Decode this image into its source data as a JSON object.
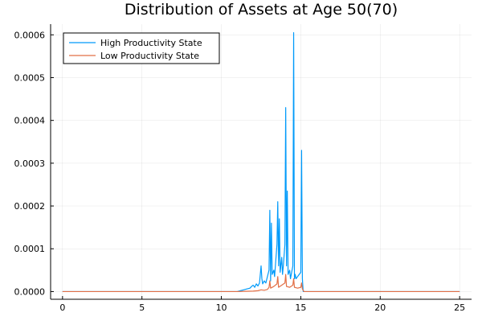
{
  "chart_data": {
    "type": "line",
    "title": "Distribution of Assets at Age 50(70)",
    "xlabel": "",
    "ylabel": "",
    "xlim": [
      -0.75,
      25.75
    ],
    "ylim": [
      -1.8e-05,
      0.000625
    ],
    "xticks": [
      0,
      5,
      10,
      15,
      20,
      25
    ],
    "xtick_labels": [
      "0",
      "5",
      "10",
      "15",
      "20",
      "25"
    ],
    "yticks": [
      0,
      0.0001,
      0.0002,
      0.0003,
      0.0004,
      0.0005,
      0.0006
    ],
    "ytick_labels": [
      "0.0000",
      "0.0001",
      "0.0002",
      "0.0003",
      "0.0004",
      "0.0005",
      "0.0006"
    ],
    "grid": true,
    "legend_position": "top-left",
    "series": [
      {
        "name": "High Productivity State",
        "color": "#009AFA",
        "x": [
          0,
          11,
          11.2,
          11.4,
          11.6,
          11.8,
          11.9,
          12.0,
          12.1,
          12.2,
          12.3,
          12.4,
          12.45,
          12.5,
          12.55,
          12.6,
          12.7,
          12.8,
          12.9,
          13.0,
          13.05,
          13.1,
          13.15,
          13.2,
          13.3,
          13.35,
          13.4,
          13.5,
          13.55,
          13.6,
          13.65,
          13.7,
          13.8,
          13.85,
          13.9,
          14.0,
          14.05,
          14.1,
          14.15,
          14.2,
          14.3,
          14.35,
          14.4,
          14.5,
          14.55,
          14.6,
          14.65,
          14.7,
          14.8,
          14.9,
          15.0,
          15.05,
          15.1,
          15.15,
          15.2,
          15.3,
          25
        ],
        "y": [
          0,
          0,
          2e-06,
          4e-06,
          6e-06,
          8e-06,
          1.2e-05,
          1.5e-05,
          1e-05,
          1.8e-05,
          1.3e-05,
          2e-05,
          4e-05,
          6e-05,
          3e-05,
          1.8e-05,
          2.5e-05,
          2e-05,
          3.5e-05,
          5e-05,
          0.00019,
          2.5e-05,
          0.00016,
          4e-05,
          5e-05,
          3.5e-05,
          6e-05,
          0.00011,
          0.00021,
          6e-05,
          0.00017,
          4.5e-05,
          8e-05,
          4e-05,
          6e-05,
          0.00011,
          0.00043,
          6e-05,
          0.000235,
          4e-05,
          5e-05,
          3e-05,
          4e-05,
          6e-05,
          0.000605,
          3e-05,
          4e-05,
          3e-05,
          3.5e-05,
          4e-05,
          4.5e-05,
          0.00033,
          3e-05,
          0,
          0,
          0,
          0
        ]
      },
      {
        "name": "Low Productivity State",
        "color": "#E26F46",
        "x": [
          0,
          11,
          11.5,
          12.0,
          12.3,
          12.5,
          12.7,
          12.9,
          13.0,
          13.05,
          13.1,
          13.3,
          13.5,
          13.55,
          13.6,
          13.8,
          14.0,
          14.05,
          14.1,
          14.3,
          14.5,
          14.55,
          14.6,
          14.8,
          15.0,
          15.05,
          15.1,
          15.2,
          25
        ],
        "y": [
          0,
          0,
          5e-07,
          1e-06,
          2e-06,
          4e-06,
          3e-06,
          5e-06,
          1e-05,
          2.5e-05,
          8e-06,
          1.2e-05,
          1.8e-05,
          3.5e-05,
          1e-05,
          1.5e-05,
          2e-05,
          4e-05,
          1.2e-05,
          1e-05,
          1.5e-05,
          3e-05,
          1e-05,
          8e-06,
          1e-05,
          2e-05,
          6e-06,
          0,
          0
        ]
      }
    ]
  }
}
